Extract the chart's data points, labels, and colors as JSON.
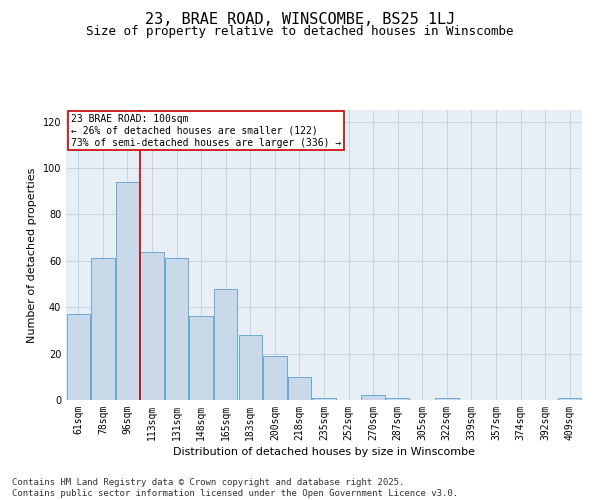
{
  "title": "23, BRAE ROAD, WINSCOMBE, BS25 1LJ",
  "subtitle": "Size of property relative to detached houses in Winscombe",
  "xlabel": "Distribution of detached houses by size in Winscombe",
  "ylabel": "Number of detached properties",
  "categories": [
    "61sqm",
    "78sqm",
    "96sqm",
    "113sqm",
    "131sqm",
    "148sqm",
    "165sqm",
    "183sqm",
    "200sqm",
    "218sqm",
    "235sqm",
    "252sqm",
    "270sqm",
    "287sqm",
    "305sqm",
    "322sqm",
    "339sqm",
    "357sqm",
    "374sqm",
    "392sqm",
    "409sqm"
  ],
  "values": [
    37,
    61,
    94,
    64,
    61,
    36,
    48,
    28,
    19,
    10,
    1,
    0,
    2,
    1,
    0,
    1,
    0,
    0,
    0,
    0,
    1
  ],
  "bar_color": "#c9d9ea",
  "bar_edge_color": "#6aaad4",
  "grid_color": "#c8d4e0",
  "background_color": "#e8eef5",
  "red_line_index": 2,
  "annotation_text": "23 BRAE ROAD: 100sqm\n← 26% of detached houses are smaller (122)\n73% of semi-detached houses are larger (336) →",
  "annotation_box_facecolor": "#ffffff",
  "annotation_box_edgecolor": "#cc0000",
  "footer_text": "Contains HM Land Registry data © Crown copyright and database right 2025.\nContains public sector information licensed under the Open Government Licence v3.0.",
  "ylim": [
    0,
    125
  ],
  "yticks": [
    0,
    20,
    40,
    60,
    80,
    100,
    120
  ],
  "title_fontsize": 11,
  "subtitle_fontsize": 9,
  "axis_label_fontsize": 8,
  "tick_fontsize": 7,
  "annotation_fontsize": 7,
  "footer_fontsize": 6.5
}
